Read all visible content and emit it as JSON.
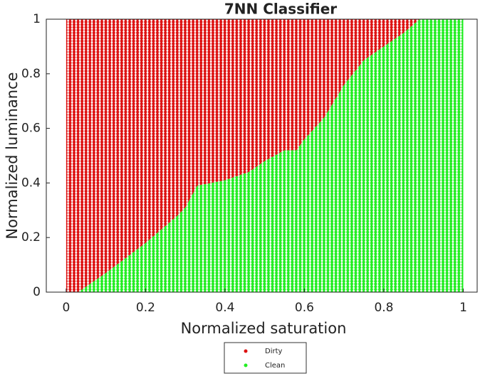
{
  "chart_data": {
    "type": "area",
    "title": "7NN Classifier",
    "x_label": "Normalized saturation",
    "y_label": "Normalized luminance",
    "x": [
      0,
      0.03,
      0.1,
      0.2,
      0.28,
      0.3,
      0.33,
      0.4,
      0.46,
      0.5,
      0.55,
      0.58,
      0.6,
      0.65,
      0.7,
      0.75,
      0.8,
      0.85,
      0.89,
      1
    ],
    "series": [
      {
        "name": "Clean",
        "color": "#22ee22",
        "values": [
          0,
          0,
          0.07,
          0.18,
          0.28,
          0.31,
          0.39,
          0.41,
          0.44,
          0.48,
          0.52,
          0.52,
          0.56,
          0.64,
          0.76,
          0.85,
          0.9,
          0.95,
          1,
          1
        ]
      },
      {
        "name": "Dirty",
        "color": "#dd1111",
        "values": [
          1,
          1,
          0.93,
          0.82,
          0.72,
          0.69,
          0.61,
          0.59,
          0.56,
          0.52,
          0.48,
          0.48,
          0.44,
          0.36,
          0.24,
          0.15,
          0.1,
          0.05,
          0,
          0
        ]
      }
    ],
    "legend_order": [
      1,
      0
    ],
    "xlim": [
      -0.05,
      1.035
    ],
    "ylim": [
      0,
      1
    ],
    "xticks": [
      0,
      0.2,
      0.4,
      0.6,
      0.8,
      1
    ],
    "yticks": [
      0,
      0.2,
      0.4,
      0.6,
      0.8,
      1
    ]
  }
}
